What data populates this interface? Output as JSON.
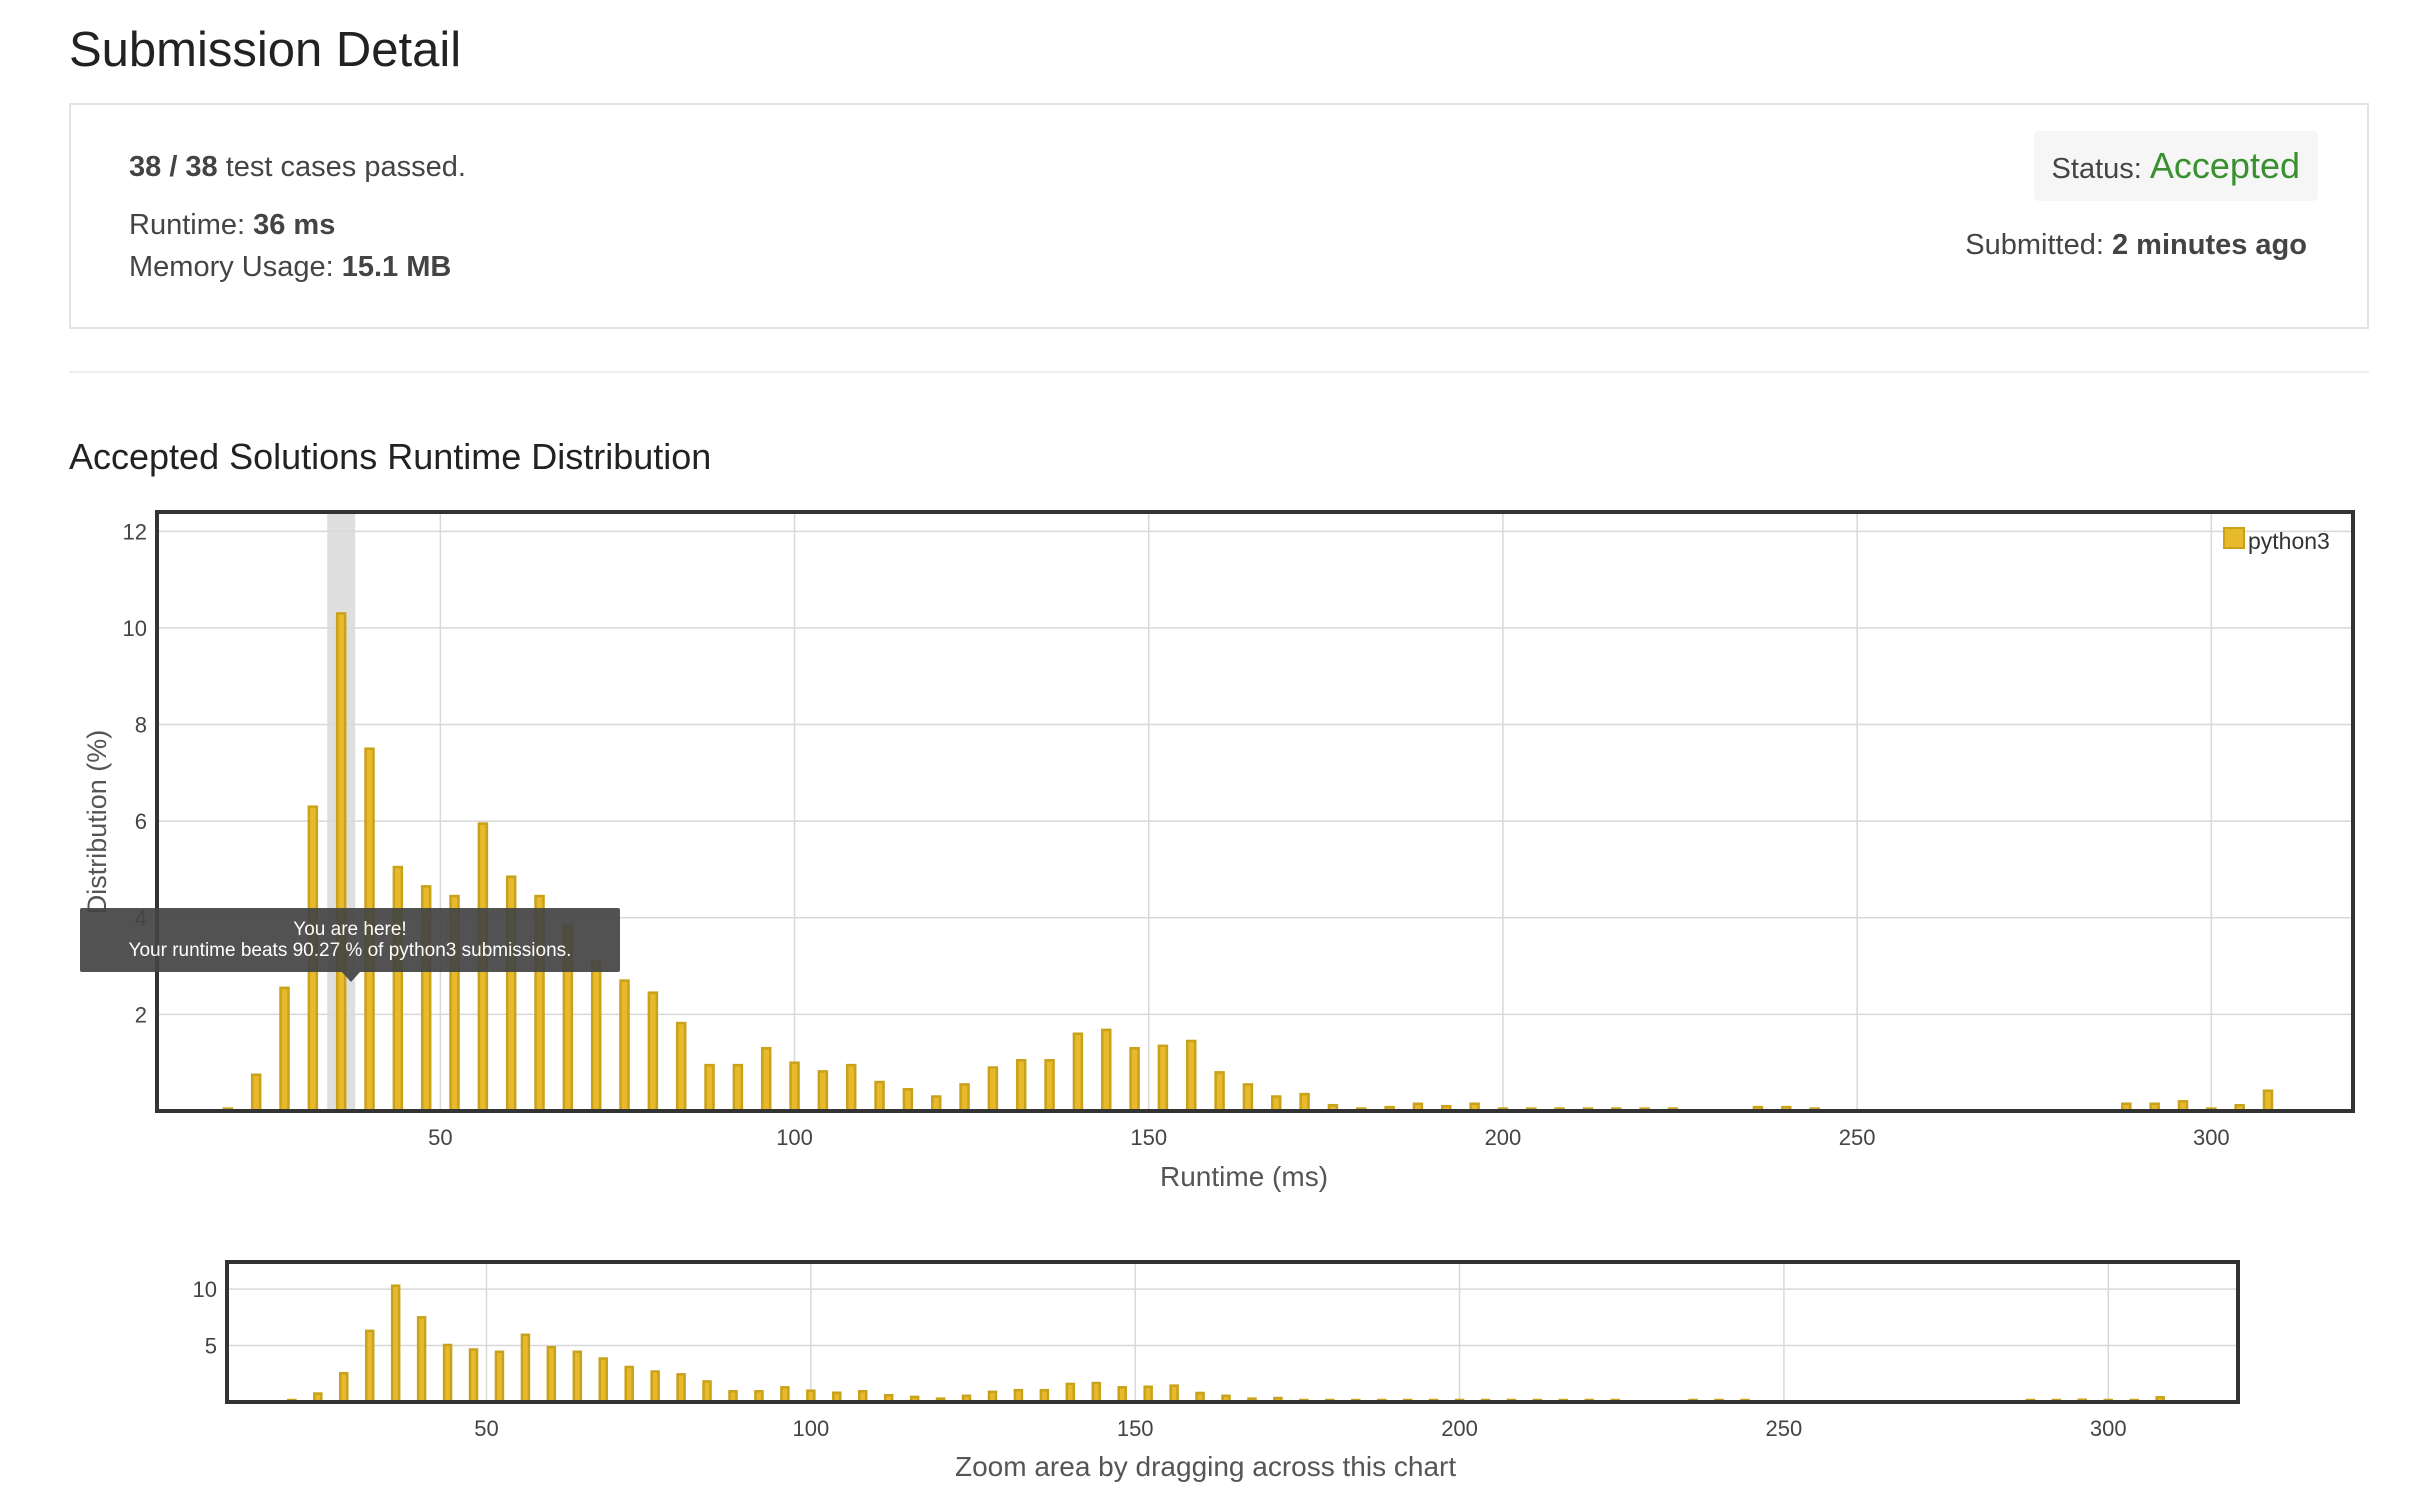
{
  "page": {
    "title": "Submission Detail",
    "section_title": "Accepted Solutions Runtime Distribution"
  },
  "summary": {
    "tests_passed": "38 / 38",
    "tests_suffix": "test cases passed.",
    "runtime_label": "Runtime:",
    "runtime_value": "36 ms",
    "memory_label": "Memory Usage:",
    "memory_value": "15.1 MB",
    "status_label": "Status:",
    "status_value": "Accepted",
    "submitted_label": "Submitted:",
    "submitted_value": "2 minutes ago"
  },
  "colors": {
    "accepted": "#39902f",
    "bar_fill": "#e8b92a",
    "bar_stroke": "#c9a21b",
    "grid": "#d8d8d8",
    "highlight_band": "#d9d9d9"
  },
  "tooltip": {
    "line1": "You are here!",
    "line2": "Your runtime beats 90.27 % of python3 submissions."
  },
  "zoom_hint": "Zoom area by dragging across this chart",
  "chart_data": [
    {
      "type": "bar",
      "title": "",
      "xlabel": "Runtime (ms)",
      "ylabel": "Distribution (%)",
      "xlim": [
        10,
        320
      ],
      "ylim": [
        0,
        12.4
      ],
      "xticks": [
        50,
        100,
        150,
        200,
        250,
        300
      ],
      "yticks": [
        2,
        4,
        6,
        8,
        10,
        12
      ],
      "grid": true,
      "legend": "top-right",
      "highlight_x": 36,
      "series": [
        {
          "name": "python3",
          "x": [
            20,
            24,
            28,
            32,
            36,
            40,
            44,
            48,
            52,
            56,
            60,
            64,
            68,
            72,
            76,
            80,
            84,
            88,
            92,
            96,
            100,
            104,
            108,
            112,
            116,
            120,
            124,
            128,
            132,
            136,
            140,
            144,
            148,
            152,
            156,
            160,
            164,
            168,
            172,
            176,
            180,
            184,
            188,
            192,
            196,
            200,
            204,
            208,
            212,
            216,
            220,
            224,
            236,
            240,
            244,
            288,
            292,
            296,
            300,
            304,
            308
          ],
          "values": [
            0.05,
            0.75,
            2.55,
            6.3,
            10.3,
            7.5,
            5.05,
            4.65,
            4.45,
            5.95,
            4.85,
            4.45,
            3.85,
            3.1,
            2.7,
            2.45,
            1.82,
            0.95,
            0.95,
            1.3,
            1.0,
            0.82,
            0.95,
            0.6,
            0.45,
            0.3,
            0.55,
            0.9,
            1.05,
            1.05,
            1.6,
            1.68,
            1.3,
            1.35,
            1.45,
            0.8,
            0.55,
            0.3,
            0.35,
            0.12,
            0.05,
            0.08,
            0.15,
            0.1,
            0.15,
            0.05,
            0.05,
            0.05,
            0.05,
            0.05,
            0.05,
            0.05,
            0.08,
            0.08,
            0.05,
            0.15,
            0.15,
            0.2,
            0.05,
            0.12,
            0.42
          ]
        }
      ]
    },
    {
      "type": "bar",
      "title": "",
      "xlabel": "",
      "ylabel": "",
      "xlim": [
        10,
        320
      ],
      "ylim": [
        0,
        12.4
      ],
      "xticks": [
        50,
        100,
        150,
        200,
        250,
        300
      ],
      "yticks": [
        5,
        10
      ],
      "grid": true,
      "series": [
        {
          "x": [
            20,
            24,
            28,
            32,
            36,
            40,
            44,
            48,
            52,
            56,
            60,
            64,
            68,
            72,
            76,
            80,
            84,
            88,
            92,
            96,
            100,
            104,
            108,
            112,
            116,
            120,
            124,
            128,
            132,
            136,
            140,
            144,
            148,
            152,
            156,
            160,
            164,
            168,
            172,
            176,
            180,
            184,
            188,
            192,
            196,
            200,
            204,
            208,
            212,
            216,
            220,
            224,
            236,
            240,
            244,
            288,
            292,
            296,
            300,
            304,
            308
          ],
          "values": [
            0.05,
            0.75,
            2.55,
            6.3,
            10.3,
            7.5,
            5.05,
            4.65,
            4.45,
            5.95,
            4.85,
            4.45,
            3.85,
            3.1,
            2.7,
            2.45,
            1.82,
            0.95,
            0.95,
            1.3,
            1.0,
            0.82,
            0.95,
            0.6,
            0.45,
            0.3,
            0.55,
            0.9,
            1.05,
            1.05,
            1.6,
            1.68,
            1.3,
            1.35,
            1.45,
            0.8,
            0.55,
            0.3,
            0.35,
            0.12,
            0.05,
            0.08,
            0.15,
            0.1,
            0.15,
            0.05,
            0.05,
            0.05,
            0.05,
            0.05,
            0.05,
            0.05,
            0.08,
            0.08,
            0.05,
            0.15,
            0.15,
            0.2,
            0.05,
            0.12,
            0.42
          ]
        }
      ]
    }
  ]
}
